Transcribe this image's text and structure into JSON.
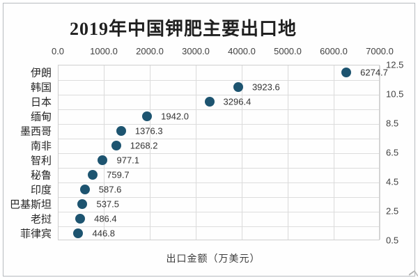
{
  "title": "2019年中国钾肥主要出口地",
  "chart_data": {
    "type": "scatter",
    "title": "2019年中国钾肥主要出口地",
    "xlabel": "出口金额（万美元）",
    "categories": [
      "伊朗",
      "韩国",
      "日本",
      "缅甸",
      "墨西哥",
      "南非",
      "智利",
      "秘鲁",
      "印度",
      "巴基斯坦",
      "老挝",
      "菲律宾"
    ],
    "values": [
      6274.7,
      3923.6,
      3296.4,
      1942.0,
      1376.3,
      1268.2,
      977.1,
      759.7,
      587.6,
      537.5,
      486.4,
      446.8
    ],
    "value_labels": [
      "6274.7",
      "3923.6",
      "3296.4",
      "1942.0",
      "1376.3",
      "1268.2",
      "977.1",
      "759.7",
      "587.6",
      "537.5",
      "486.4",
      "446.8"
    ],
    "x_ticks": [
      "0.0",
      "1000.0",
      "2000.0",
      "3000.0",
      "4000.0",
      "5000.0",
      "6000.0",
      "7000.0"
    ],
    "xlim": [
      0,
      7000
    ],
    "x_axis_position": "top",
    "secondary_y_ticks": [
      "12.5",
      "10.5",
      "8.5",
      "6.5",
      "4.5",
      "2.5",
      "0.5"
    ],
    "secondary_ylim": [
      0.5,
      12.5
    ],
    "grid": true,
    "legend": "none",
    "marker_color": "#1d5470",
    "gridline_color": "#dadada",
    "text_color": "#333333"
  }
}
